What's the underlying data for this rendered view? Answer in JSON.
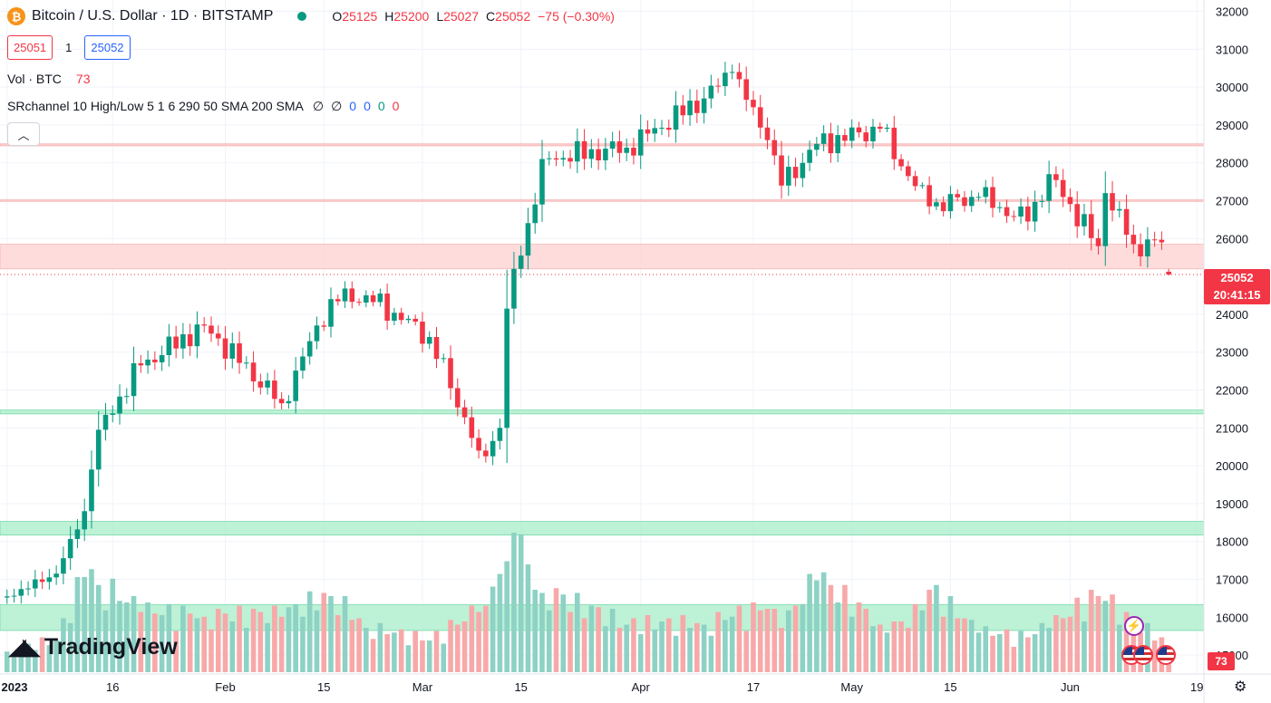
{
  "header": {
    "coin_glyph": "₿",
    "symbol": "Bitcoin / U.S. Dollar · 1D · BITSTAMP",
    "ohlc": [
      {
        "k": "O",
        "v": "25125"
      },
      {
        "k": "H",
        "v": "25200"
      },
      {
        "k": "L",
        "v": "25027"
      },
      {
        "k": "C",
        "v": "25052"
      },
      {
        "k": "",
        "v": "−75 (−0.30%)"
      }
    ]
  },
  "trade": {
    "bid": "25051",
    "spread": "1",
    "ask": "25052"
  },
  "volume_legend": {
    "label": "Vol · BTC",
    "value": "73"
  },
  "indicator": {
    "label": "SRchannel 10 High/Low 5 1 6 290 50 SMA 200 SMA",
    "values": [
      "∅",
      "∅",
      "0",
      "0",
      "0",
      "0"
    ],
    "value_colors": [
      "#131722",
      "#131722",
      "#2962ff",
      "#2962ff",
      "#089981",
      "#f23645"
    ]
  },
  "last_price_tag": {
    "price": "25052",
    "countdown": "20:41:15"
  },
  "last_volume_tag": "73",
  "brand": "TradingView",
  "colors": {
    "up": "#089981",
    "down": "#f23645",
    "up_volume": "#8dd2c4",
    "down_volume": "#f7a9a9",
    "resistance_zone": "#ffd6d6",
    "support_zone": "#b2f0d0"
  },
  "chart_data": {
    "type": "candlestick",
    "title": "Bitcoin / U.S. Dollar · 1D · BITSTAMP",
    "y_axis": {
      "ticks": [
        15000,
        16000,
        17000,
        18000,
        19000,
        20000,
        21000,
        22000,
        23000,
        24000,
        26000,
        27000,
        28000,
        29000,
        30000,
        31000,
        32000
      ],
      "range": [
        14500,
        32300
      ],
      "position": "right"
    },
    "x_axis": {
      "ticks": [
        "2023",
        "16",
        "Feb",
        "15",
        "Mar",
        "15",
        "Apr",
        "17",
        "May",
        "15",
        "Jun",
        "19"
      ],
      "range": [
        "2022-12-31",
        "2023-06-20"
      ]
    },
    "last_price": 25052,
    "sr_channels": [
      {
        "kind": "resistance",
        "from": 25200,
        "to": 25850
      },
      {
        "kind": "resistance",
        "from": 28450,
        "to": 28500
      },
      {
        "kind": "resistance",
        "from": 26990,
        "to": 27020
      },
      {
        "kind": "support",
        "from": 21370,
        "to": 21470
      },
      {
        "kind": "support",
        "from": 18170,
        "to": 18530
      },
      {
        "kind": "support",
        "from": 15650,
        "to": 16330
      }
    ],
    "anchors": [
      [
        "2023-01-01",
        16550,
        13
      ],
      [
        "2023-01-08",
        17150,
        20
      ],
      [
        "2023-01-12",
        18800,
        60
      ],
      [
        "2023-01-13",
        19900,
        65
      ],
      [
        "2023-01-14",
        20950,
        55
      ],
      [
        "2023-01-20",
        22650,
        38
      ],
      [
        "2023-01-29",
        23700,
        35
      ],
      [
        "2023-02-09",
        21650,
        35
      ],
      [
        "2023-02-16",
        24400,
        48
      ],
      [
        "2023-02-21",
        24500,
        28
      ],
      [
        "2023-03-02",
        23400,
        20
      ],
      [
        "2023-03-09",
        20400,
        38
      ],
      [
        "2023-03-10",
        20250,
        42
      ],
      [
        "2023-03-12",
        21000,
        62
      ],
      [
        "2023-03-13",
        24150,
        70
      ],
      [
        "2023-03-14",
        25200,
        88
      ],
      [
        "2023-03-17",
        26900,
        52
      ],
      [
        "2023-03-18",
        28100,
        50
      ],
      [
        "2023-03-30",
        28400,
        30
      ],
      [
        "2023-04-10",
        29700,
        30
      ],
      [
        "2023-04-14",
        30400,
        35
      ],
      [
        "2023-04-19",
        28600,
        40
      ],
      [
        "2023-04-21",
        27400,
        28
      ],
      [
        "2023-04-26",
        28500,
        58
      ],
      [
        "2023-05-05",
        28900,
        30
      ],
      [
        "2023-05-09",
        27650,
        28
      ],
      [
        "2023-05-12",
        26850,
        52
      ],
      [
        "2023-05-19",
        27100,
        25
      ],
      [
        "2023-05-26",
        26450,
        22
      ],
      [
        "2023-05-29",
        27700,
        28
      ],
      [
        "2023-06-05",
        25800,
        48
      ],
      [
        "2023-06-06",
        27200,
        45
      ],
      [
        "2023-06-10",
        25850,
        30
      ],
      [
        "2023-06-14",
        25900,
        22
      ],
      [
        "2023-06-15",
        25052,
        13
      ]
    ],
    "volume_unit": "BTC"
  }
}
